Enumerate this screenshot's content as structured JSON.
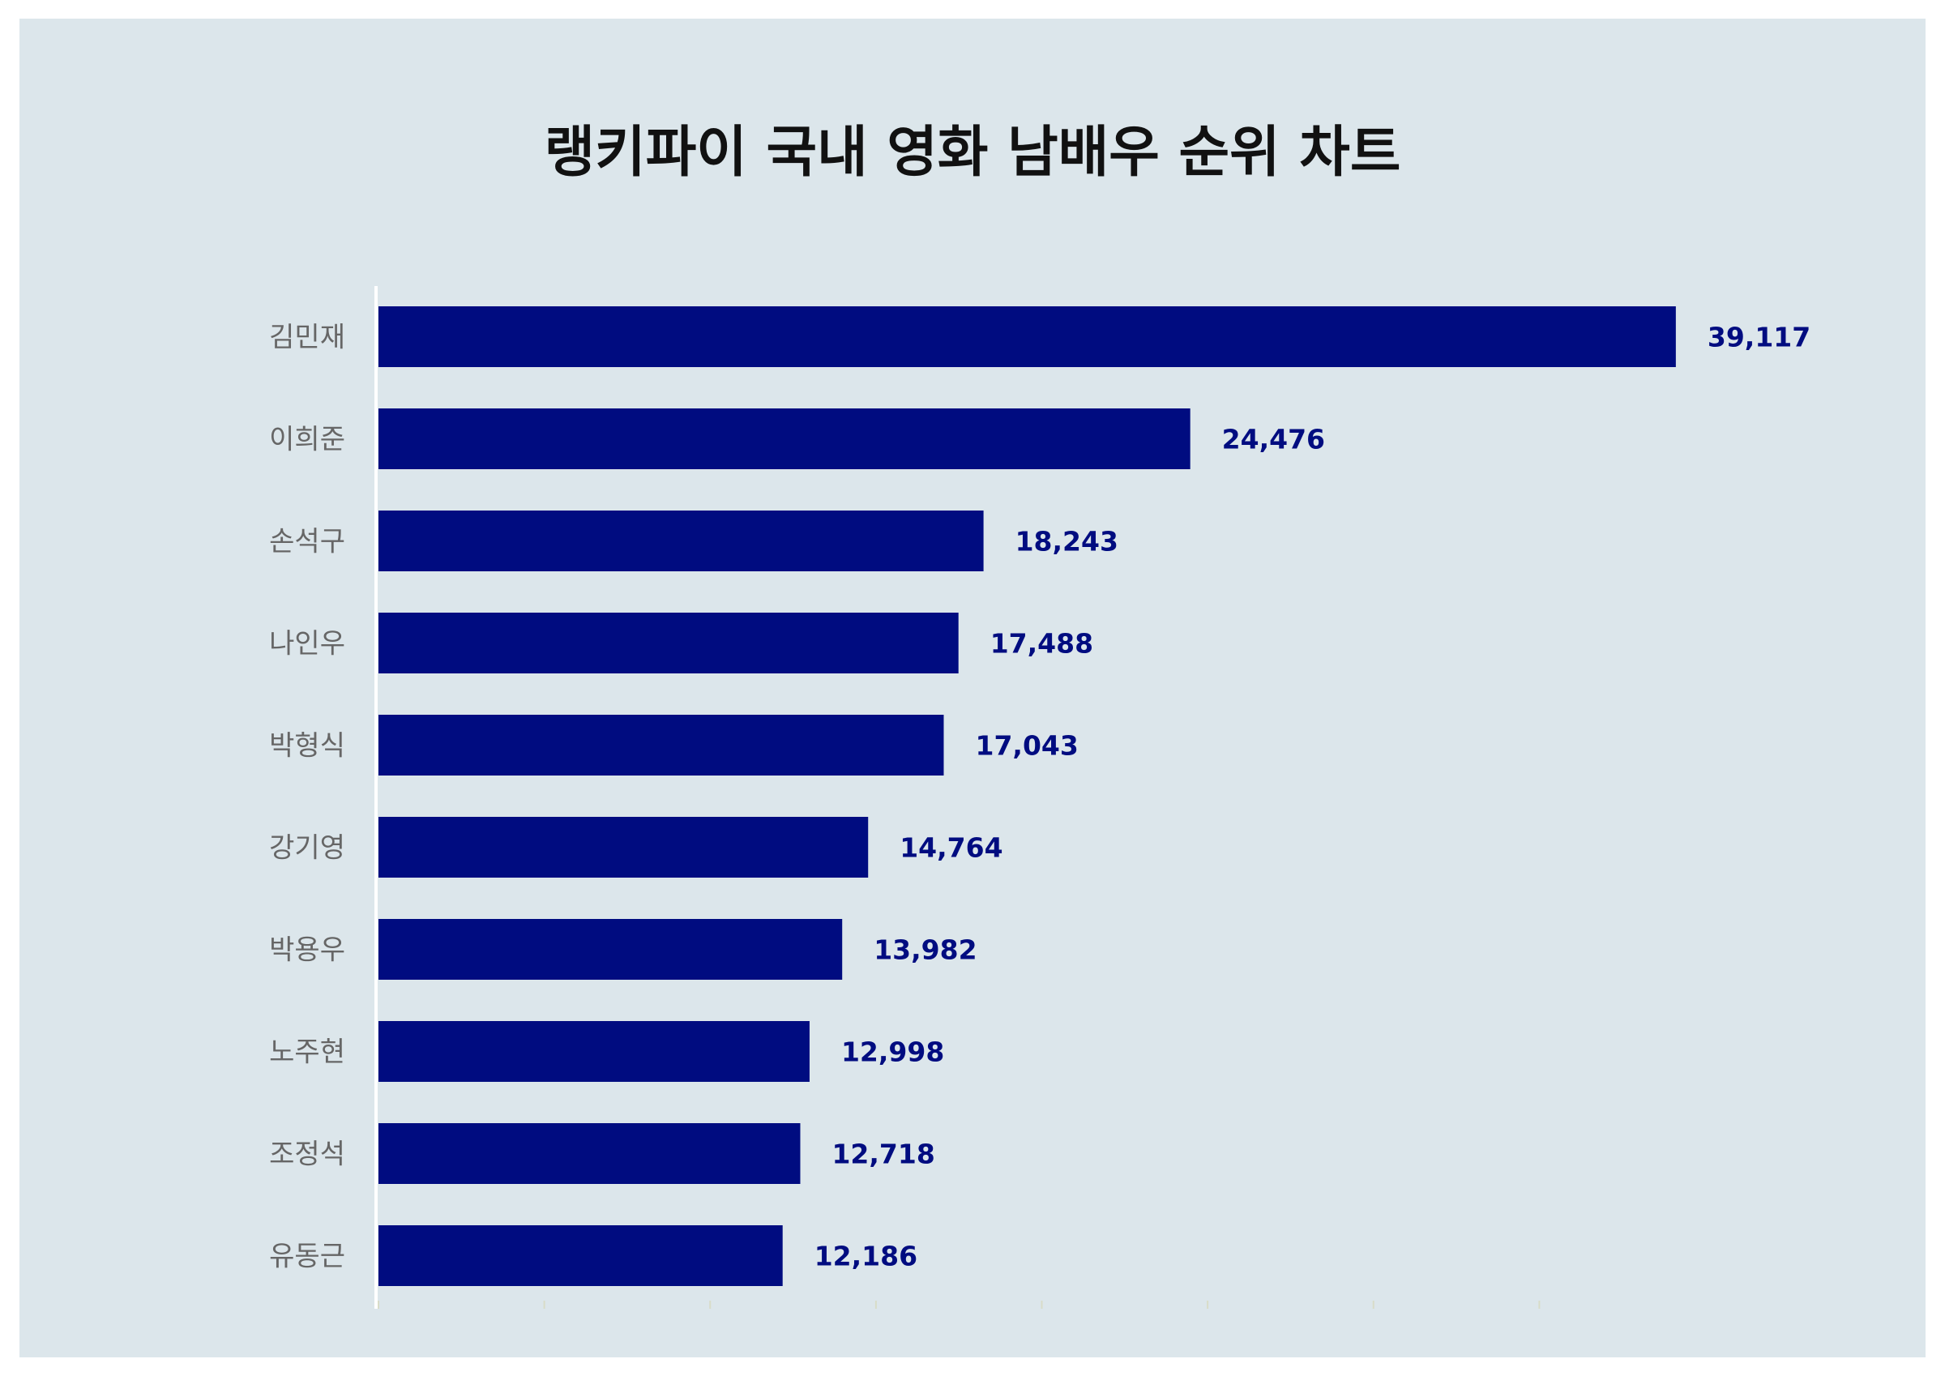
{
  "chart_data": {
    "type": "bar",
    "orientation": "horizontal",
    "title": "랭키파이 국내 영화 남배우 순위 차트",
    "categories": [
      "김민재",
      "이희준",
      "손석구",
      "나인우",
      "박형식",
      "강기영",
      "박용우",
      "노주현",
      "조정석",
      "유동근"
    ],
    "values": [
      39117,
      24476,
      18243,
      17488,
      17043,
      14764,
      13982,
      12998,
      12718,
      12186
    ],
    "value_labels": [
      "39,117",
      "24,476",
      "18,243",
      "17,488",
      "17,043",
      "14,764",
      "13,982",
      "12,998",
      "12,718",
      "12,186"
    ],
    "xlabel": "",
    "ylabel": "",
    "xlim": [
      0,
      40000
    ],
    "grid": false,
    "legend": "none"
  },
  "colors": {
    "background": "#dce6eb",
    "bar": "#000c80",
    "value_label": "#000c80",
    "category_label": "#666666",
    "axis_line": "#ffffff",
    "title": "#111111"
  }
}
